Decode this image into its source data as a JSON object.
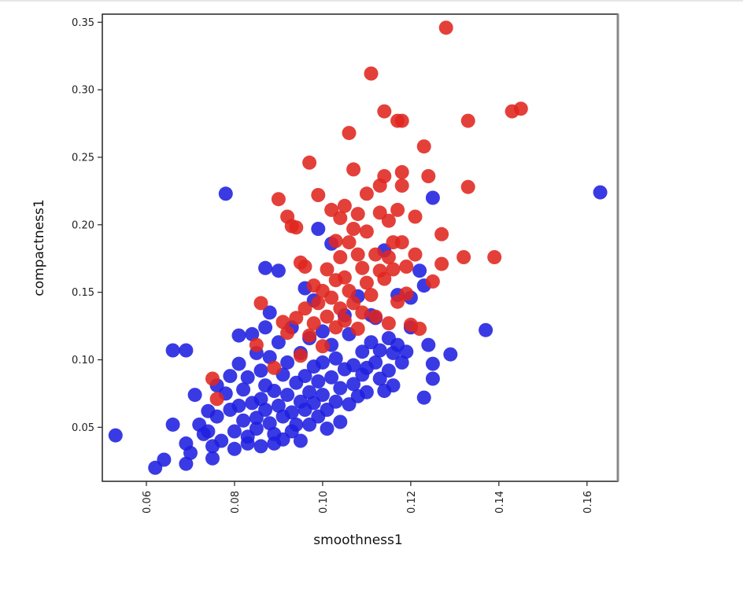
{
  "chart_data": {
    "type": "scatter",
    "xlabel": "smoothness1",
    "ylabel": "compactness1",
    "xlim": [
      0.05,
      0.167
    ],
    "ylim": [
      0.01,
      0.356
    ],
    "xticks": [
      0.06,
      0.08,
      0.1,
      0.12,
      0.14,
      0.16
    ],
    "xtick_labels": [
      "0.06",
      "0.08",
      "0.10",
      "0.12",
      "0.14",
      "0.16"
    ],
    "yticks": [
      0.05,
      0.1,
      0.15,
      0.2,
      0.25,
      0.3,
      0.35
    ],
    "ytick_labels": [
      "0.05",
      "0.10",
      "0.15",
      "0.20",
      "0.25",
      "0.30",
      "0.35"
    ],
    "grid": false,
    "series": [
      {
        "color": "#1f1fe0",
        "points": [
          [
            0.053,
            0.044
          ],
          [
            0.062,
            0.02
          ],
          [
            0.064,
            0.026
          ],
          [
            0.066,
            0.052
          ],
          [
            0.066,
            0.107
          ],
          [
            0.069,
            0.107
          ],
          [
            0.069,
            0.038
          ],
          [
            0.069,
            0.023
          ],
          [
            0.07,
            0.031
          ],
          [
            0.071,
            0.074
          ],
          [
            0.072,
            0.052
          ],
          [
            0.073,
            0.045
          ],
          [
            0.074,
            0.062
          ],
          [
            0.074,
            0.047
          ],
          [
            0.075,
            0.036
          ],
          [
            0.075,
            0.027
          ],
          [
            0.076,
            0.081
          ],
          [
            0.076,
            0.058
          ],
          [
            0.077,
            0.04
          ],
          [
            0.078,
            0.075
          ],
          [
            0.078,
            0.223
          ],
          [
            0.079,
            0.063
          ],
          [
            0.079,
            0.088
          ],
          [
            0.08,
            0.047
          ],
          [
            0.08,
            0.034
          ],
          [
            0.081,
            0.097
          ],
          [
            0.081,
            0.118
          ],
          [
            0.081,
            0.066
          ],
          [
            0.082,
            0.078
          ],
          [
            0.082,
            0.055
          ],
          [
            0.083,
            0.087
          ],
          [
            0.083,
            0.043
          ],
          [
            0.083,
            0.038
          ],
          [
            0.084,
            0.119
          ],
          [
            0.084,
            0.068
          ],
          [
            0.085,
            0.105
          ],
          [
            0.085,
            0.057
          ],
          [
            0.085,
            0.049
          ],
          [
            0.086,
            0.092
          ],
          [
            0.086,
            0.071
          ],
          [
            0.086,
            0.036
          ],
          [
            0.087,
            0.168
          ],
          [
            0.087,
            0.124
          ],
          [
            0.087,
            0.081
          ],
          [
            0.087,
            0.063
          ],
          [
            0.088,
            0.135
          ],
          [
            0.088,
            0.102
          ],
          [
            0.088,
            0.053
          ],
          [
            0.089,
            0.077
          ],
          [
            0.089,
            0.045
          ],
          [
            0.089,
            0.038
          ],
          [
            0.09,
            0.166
          ],
          [
            0.09,
            0.113
          ],
          [
            0.09,
            0.066
          ],
          [
            0.091,
            0.089
          ],
          [
            0.091,
            0.058
          ],
          [
            0.091,
            0.041
          ],
          [
            0.092,
            0.098
          ],
          [
            0.092,
            0.074
          ],
          [
            0.093,
            0.124
          ],
          [
            0.093,
            0.061
          ],
          [
            0.093,
            0.047
          ],
          [
            0.094,
            0.083
          ],
          [
            0.094,
            0.052
          ],
          [
            0.095,
            0.105
          ],
          [
            0.095,
            0.069
          ],
          [
            0.095,
            0.04
          ],
          [
            0.096,
            0.153
          ],
          [
            0.096,
            0.088
          ],
          [
            0.096,
            0.063
          ],
          [
            0.097,
            0.116
          ],
          [
            0.097,
            0.076
          ],
          [
            0.097,
            0.052
          ],
          [
            0.098,
            0.095
          ],
          [
            0.098,
            0.144
          ],
          [
            0.098,
            0.068
          ],
          [
            0.099,
            0.197
          ],
          [
            0.099,
            0.084
          ],
          [
            0.099,
            0.058
          ],
          [
            0.1,
            0.121
          ],
          [
            0.1,
            0.098
          ],
          [
            0.1,
            0.074
          ],
          [
            0.101,
            0.063
          ],
          [
            0.101,
            0.049
          ],
          [
            0.102,
            0.186
          ],
          [
            0.102,
            0.111
          ],
          [
            0.102,
            0.087
          ],
          [
            0.103,
            0.101
          ],
          [
            0.103,
            0.069
          ],
          [
            0.104,
            0.079
          ],
          [
            0.104,
            0.054
          ],
          [
            0.105,
            0.133
          ],
          [
            0.105,
            0.093
          ],
          [
            0.106,
            0.067
          ],
          [
            0.106,
            0.119
          ],
          [
            0.107,
            0.096
          ],
          [
            0.107,
            0.082
          ],
          [
            0.108,
            0.147
          ],
          [
            0.108,
            0.073
          ],
          [
            0.109,
            0.106
          ],
          [
            0.109,
            0.089
          ],
          [
            0.11,
            0.094
          ],
          [
            0.11,
            0.076
          ],
          [
            0.111,
            0.113
          ],
          [
            0.111,
            0.133
          ],
          [
            0.112,
            0.131
          ],
          [
            0.112,
            0.098
          ],
          [
            0.113,
            0.107
          ],
          [
            0.113,
            0.086
          ],
          [
            0.114,
            0.181
          ],
          [
            0.114,
            0.077
          ],
          [
            0.115,
            0.116
          ],
          [
            0.115,
            0.092
          ],
          [
            0.116,
            0.105
          ],
          [
            0.116,
            0.081
          ],
          [
            0.117,
            0.148
          ],
          [
            0.117,
            0.111
          ],
          [
            0.118,
            0.098
          ],
          [
            0.119,
            0.106
          ],
          [
            0.12,
            0.124
          ],
          [
            0.12,
            0.146
          ],
          [
            0.122,
            0.166
          ],
          [
            0.123,
            0.072
          ],
          [
            0.123,
            0.155
          ],
          [
            0.124,
            0.111
          ],
          [
            0.125,
            0.22
          ],
          [
            0.125,
            0.086
          ],
          [
            0.125,
            0.097
          ],
          [
            0.129,
            0.104
          ],
          [
            0.137,
            0.122
          ],
          [
            0.163,
            0.224
          ]
        ]
      },
      {
        "color": "#e0261f",
        "points": [
          [
            0.075,
            0.086
          ],
          [
            0.076,
            0.071
          ],
          [
            0.085,
            0.111
          ],
          [
            0.086,
            0.142
          ],
          [
            0.089,
            0.094
          ],
          [
            0.09,
            0.219
          ],
          [
            0.091,
            0.128
          ],
          [
            0.092,
            0.206
          ],
          [
            0.092,
            0.12
          ],
          [
            0.093,
            0.199
          ],
          [
            0.094,
            0.131
          ],
          [
            0.094,
            0.198
          ],
          [
            0.095,
            0.103
          ],
          [
            0.095,
            0.172
          ],
          [
            0.096,
            0.138
          ],
          [
            0.096,
            0.169
          ],
          [
            0.097,
            0.246
          ],
          [
            0.097,
            0.118
          ],
          [
            0.098,
            0.155
          ],
          [
            0.098,
            0.127
          ],
          [
            0.099,
            0.222
          ],
          [
            0.099,
            0.142
          ],
          [
            0.1,
            0.151
          ],
          [
            0.1,
            0.11
          ],
          [
            0.101,
            0.167
          ],
          [
            0.101,
            0.132
          ],
          [
            0.102,
            0.211
          ],
          [
            0.102,
            0.146
          ],
          [
            0.103,
            0.188
          ],
          [
            0.103,
            0.159
          ],
          [
            0.103,
            0.124
          ],
          [
            0.104,
            0.205
          ],
          [
            0.104,
            0.138
          ],
          [
            0.104,
            0.176
          ],
          [
            0.105,
            0.214
          ],
          [
            0.105,
            0.161
          ],
          [
            0.105,
            0.129
          ],
          [
            0.106,
            0.268
          ],
          [
            0.106,
            0.187
          ],
          [
            0.106,
            0.151
          ],
          [
            0.107,
            0.241
          ],
          [
            0.107,
            0.197
          ],
          [
            0.107,
            0.142
          ],
          [
            0.108,
            0.178
          ],
          [
            0.108,
            0.208
          ],
          [
            0.108,
            0.123
          ],
          [
            0.109,
            0.168
          ],
          [
            0.109,
            0.135
          ],
          [
            0.11,
            0.223
          ],
          [
            0.11,
            0.195
          ],
          [
            0.11,
            0.157
          ],
          [
            0.111,
            0.312
          ],
          [
            0.111,
            0.148
          ],
          [
            0.112,
            0.178
          ],
          [
            0.112,
            0.132
          ],
          [
            0.113,
            0.229
          ],
          [
            0.113,
            0.166
          ],
          [
            0.113,
            0.209
          ],
          [
            0.114,
            0.284
          ],
          [
            0.114,
            0.236
          ],
          [
            0.114,
            0.16
          ],
          [
            0.115,
            0.203
          ],
          [
            0.115,
            0.176
          ],
          [
            0.115,
            0.127
          ],
          [
            0.116,
            0.187
          ],
          [
            0.116,
            0.167
          ],
          [
            0.117,
            0.277
          ],
          [
            0.117,
            0.211
          ],
          [
            0.117,
            0.143
          ],
          [
            0.118,
            0.277
          ],
          [
            0.118,
            0.239
          ],
          [
            0.118,
            0.229
          ],
          [
            0.118,
            0.187
          ],
          [
            0.119,
            0.169
          ],
          [
            0.119,
            0.149
          ],
          [
            0.12,
            0.126
          ],
          [
            0.121,
            0.206
          ],
          [
            0.121,
            0.178
          ],
          [
            0.122,
            0.123
          ],
          [
            0.123,
            0.258
          ],
          [
            0.124,
            0.236
          ],
          [
            0.125,
            0.158
          ],
          [
            0.127,
            0.193
          ],
          [
            0.127,
            0.171
          ],
          [
            0.128,
            0.346
          ],
          [
            0.132,
            0.176
          ],
          [
            0.133,
            0.277
          ],
          [
            0.133,
            0.228
          ],
          [
            0.139,
            0.176
          ],
          [
            0.143,
            0.284
          ],
          [
            0.145,
            0.286
          ]
        ]
      }
    ]
  }
}
